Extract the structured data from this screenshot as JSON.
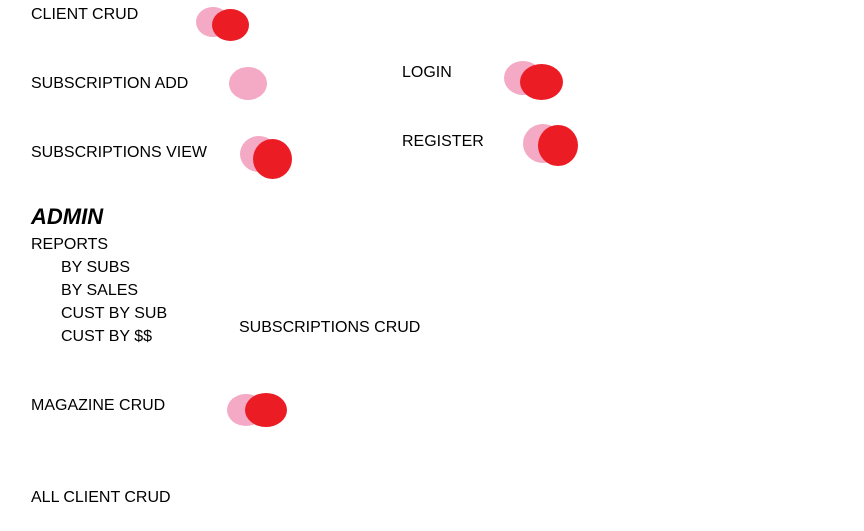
{
  "items": {
    "client_crud": "CLIENT CRUD",
    "subscription_add": "SUBSCRIPTION ADD",
    "subscriptions_view": "SUBSCRIPTIONS VIEW",
    "login": "LOGIN",
    "register": "REGISTER",
    "subscriptions_crud": "SUBSCRIPTIONS CRUD",
    "magazine_crud": "MAGAZINE CRUD",
    "all_client_crud": "ALL CLIENT CRUD"
  },
  "admin": {
    "heading": "ADMIN",
    "reports": "REPORTS",
    "report_items": [
      "BY SUBS",
      "BY SALES",
      "CUST BY SUB",
      "CUST BY $$"
    ]
  },
  "toggles": {
    "client_crud": "on",
    "subscription_add": "off",
    "subscriptions_view": "on",
    "login": "on",
    "register": "on",
    "magazine_crud": "on"
  },
  "colors": {
    "toggle_on": "#ec1c24",
    "toggle_off": "#f4a9c4"
  }
}
